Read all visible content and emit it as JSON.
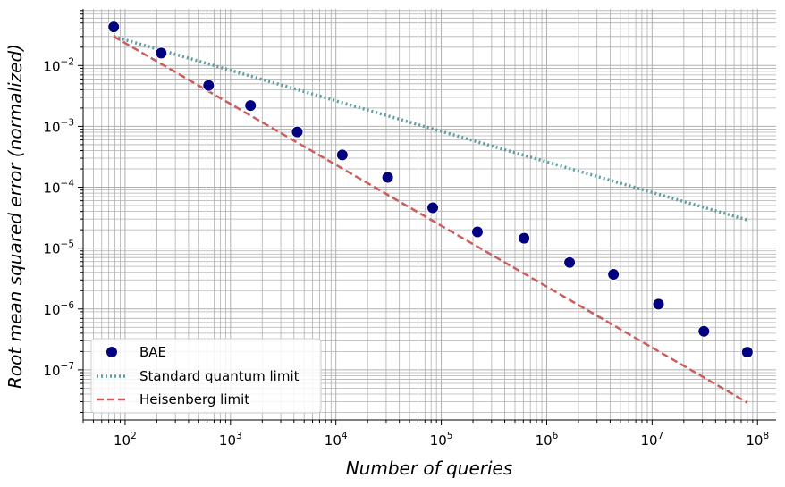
{
  "chart_data": {
    "type": "scatter",
    "xscale": "log",
    "yscale": "log",
    "xlabel": "Number of queries",
    "ylabel": "Root mean squared error (normalized)",
    "xlim": [
      40,
      150000000
    ],
    "ylim": [
      1.5e-08,
      0.085
    ],
    "grid": "major and minor",
    "legend_location": "lower-left",
    "x_ticks": [
      {
        "value": 100,
        "base": "10",
        "exp": "2"
      },
      {
        "value": 1000,
        "base": "10",
        "exp": "3"
      },
      {
        "value": 10000,
        "base": "10",
        "exp": "4"
      },
      {
        "value": 100000,
        "base": "10",
        "exp": "5"
      },
      {
        "value": 1000000,
        "base": "10",
        "exp": "6"
      },
      {
        "value": 10000000,
        "base": "10",
        "exp": "7"
      },
      {
        "value": 100000000,
        "base": "10",
        "exp": "8"
      }
    ],
    "y_ticks": [
      {
        "value": 1e-07,
        "base": "10",
        "exp": "−7"
      },
      {
        "value": 1e-06,
        "base": "10",
        "exp": "−6"
      },
      {
        "value": 1e-05,
        "base": "10",
        "exp": "−5"
      },
      {
        "value": 0.0001,
        "base": "10",
        "exp": "−4"
      },
      {
        "value": 0.001,
        "base": "10",
        "exp": "−3"
      },
      {
        "value": 0.01,
        "base": "10",
        "exp": "−2"
      }
    ],
    "series": [
      {
        "name": "BAE",
        "kind": "scatter",
        "color": "#000080",
        "x": [
          78,
          220,
          620,
          1550,
          4300,
          11500,
          31000,
          83000,
          220000,
          610000,
          1650000,
          4300000,
          11500000,
          31000000,
          80000000
        ],
        "y": [
          0.043,
          0.016,
          0.0047,
          0.0022,
          0.00081,
          0.00034,
          0.000145,
          4.6e-05,
          1.85e-05,
          1.45e-05,
          5.8e-06,
          3.7e-06,
          1.2e-06,
          4.3e-07,
          1.95e-07
        ]
      },
      {
        "name": "Standard quantum limit",
        "kind": "line",
        "style": "dotted",
        "color": "#5f9ea0",
        "x": [
          78,
          80000000
        ],
        "y": [
          0.03,
          2.9e-05
        ]
      },
      {
        "name": "Heisenberg limit",
        "kind": "line",
        "style": "dashed",
        "color": "#cd5c5c",
        "x": [
          78,
          80000000
        ],
        "y": [
          0.03,
          2.9e-08
        ]
      }
    ]
  }
}
